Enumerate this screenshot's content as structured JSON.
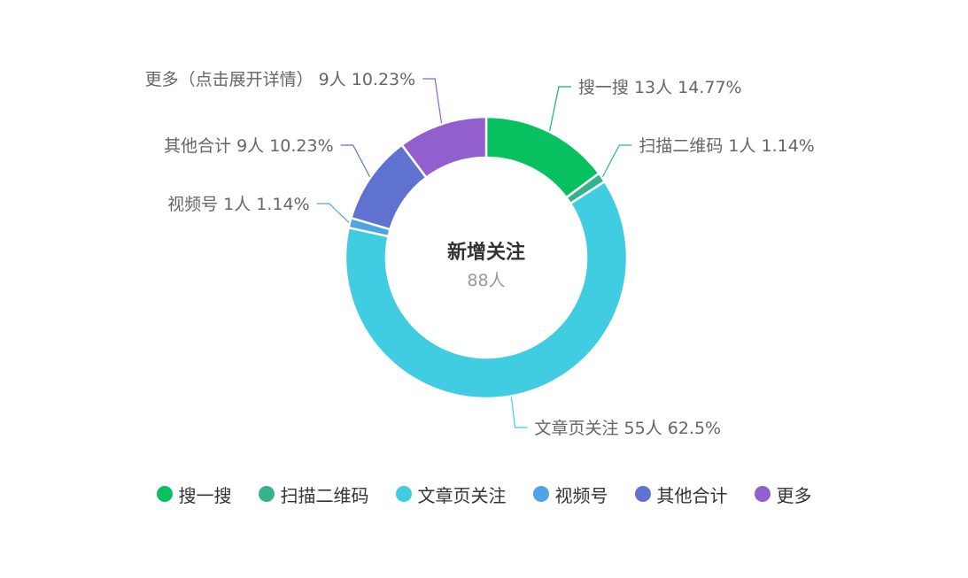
{
  "chart_data": {
    "type": "pie",
    "center": {
      "title": "新增关注",
      "value": "88人"
    },
    "slices": [
      {
        "name": "搜一搜",
        "value": 13,
        "value_text": "13人",
        "percent_text": "14.77%",
        "color": "#07c160"
      },
      {
        "name": "扫描二维码",
        "value": 1,
        "value_text": "1人",
        "percent_text": "1.14%",
        "color": "#35b38a"
      },
      {
        "name": "文章页关注",
        "value": 55,
        "value_text": "55人",
        "percent_text": "62.5%",
        "color": "#41cde1"
      },
      {
        "name": "视频号",
        "value": 1,
        "value_text": "1人",
        "percent_text": "1.14%",
        "color": "#4ea4e6"
      },
      {
        "name": "其他合计",
        "value": 9,
        "value_text": "9人",
        "percent_text": "10.23%",
        "color": "#5f72cf"
      },
      {
        "name": "更多（点击展开详情）",
        "value": 9,
        "value_text": "9人",
        "percent_text": "10.23%",
        "color": "#9160ce"
      }
    ],
    "legend": {
      "placement": "bottom",
      "items": [
        {
          "label": "搜一搜",
          "color": "#07c160"
        },
        {
          "label": "扫描二维码",
          "color": "#35b38a"
        },
        {
          "label": "文章页关注",
          "color": "#41cde1"
        },
        {
          "label": "视频号",
          "color": "#4ea4e6"
        },
        {
          "label": "其他合计",
          "color": "#5f72cf"
        },
        {
          "label": "更多",
          "color": "#9160ce"
        }
      ]
    }
  }
}
